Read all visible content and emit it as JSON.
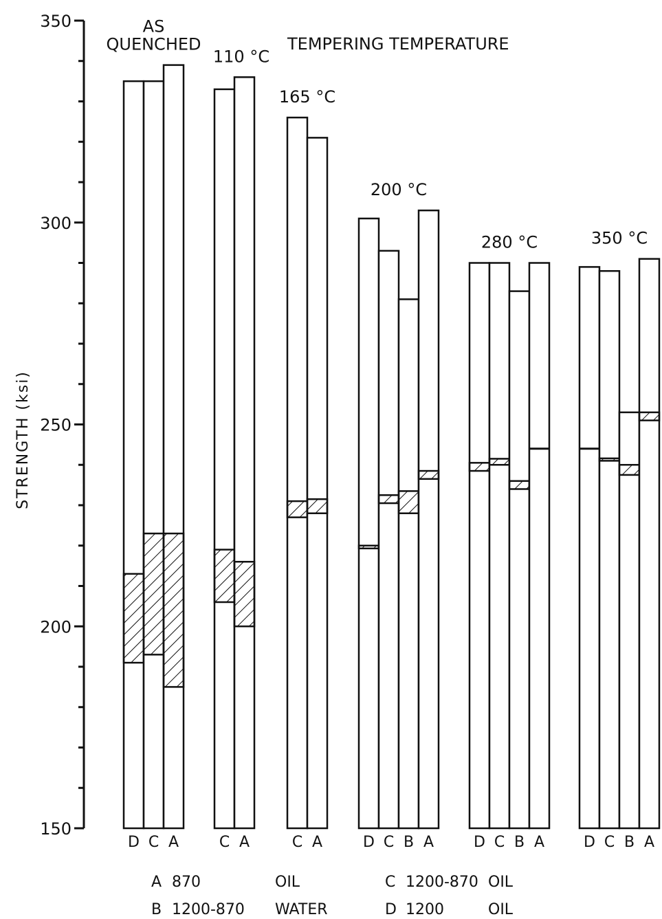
{
  "chart_data": {
    "type": "bar",
    "title": "TEMPERING TEMPERATURE",
    "ylabel": "STRENGTH (ksi)",
    "ylim": [
      150,
      350
    ],
    "y_ticks": [
      150,
      200,
      250,
      300,
      350
    ],
    "y_tick_labels": [
      "150",
      "200",
      "250",
      "300",
      "350"
    ],
    "y_minor_step": 10,
    "groups": [
      {
        "label_lines": [
          "AS",
          "QUENCHED"
        ],
        "bars": [
          {
            "category": "D",
            "top": 335,
            "band_low": 191,
            "band_high": 213
          },
          {
            "category": "C",
            "top": 335,
            "band_low": 193,
            "band_high": 223
          },
          {
            "category": "A",
            "top": 339,
            "band_low": 185,
            "band_high": 223
          }
        ]
      },
      {
        "label_lines": [
          "110 °C"
        ],
        "bars": [
          {
            "category": "C",
            "top": 333,
            "band_low": 206,
            "band_high": 219
          },
          {
            "category": "A",
            "top": 336,
            "band_low": 200,
            "band_high": 216
          }
        ]
      },
      {
        "label_lines": [
          "165 °C"
        ],
        "bars": [
          {
            "category": "C",
            "top": 326,
            "band_low": 227,
            "band_high": 231
          },
          {
            "category": "A",
            "top": 321,
            "band_low": 228,
            "band_high": 231.5
          }
        ]
      },
      {
        "label_lines": [
          "200 °C"
        ],
        "bars": [
          {
            "category": "D",
            "top": 301,
            "band_low": 219.3,
            "band_high": 220
          },
          {
            "category": "C",
            "top": 293,
            "band_low": 230.5,
            "band_high": 232.5
          },
          {
            "category": "B",
            "top": 281,
            "band_low": 228,
            "band_high": 233.5
          },
          {
            "category": "A",
            "top": 303,
            "band_low": 236.5,
            "band_high": 238.5
          }
        ]
      },
      {
        "label_lines": [
          "280 °C"
        ],
        "bars": [
          {
            "category": "D",
            "top": 290,
            "band_low": 238.5,
            "band_high": 240.5
          },
          {
            "category": "C",
            "top": 290,
            "band_low": 240,
            "band_high": 241.5
          },
          {
            "category": "B",
            "top": 283,
            "band_low": 234,
            "band_high": 236
          },
          {
            "category": "A",
            "top": 290,
            "band_low": 244,
            "band_high": 244
          }
        ]
      },
      {
        "label_lines": [
          "350 °C"
        ],
        "bars": [
          {
            "category": "D",
            "top": 289,
            "band_low": 244,
            "band_high": 244
          },
          {
            "category": "C",
            "top": 288,
            "band_low": 241,
            "band_high": 241.6
          },
          {
            "category": "B",
            "top": 253,
            "band_low": 237.5,
            "band_high": 240
          },
          {
            "category": "A",
            "top": 291,
            "band_low": 251,
            "band_high": 253
          }
        ]
      }
    ],
    "legend": [
      {
        "key": "A",
        "desc": "870",
        "quench": "OIL"
      },
      {
        "key": "B",
        "desc": "1200-870",
        "quench": "WATER"
      },
      {
        "key": "C",
        "desc": "1200-870",
        "quench": "OIL"
      },
      {
        "key": "D",
        "desc": "1200",
        "quench": "OIL"
      }
    ]
  }
}
